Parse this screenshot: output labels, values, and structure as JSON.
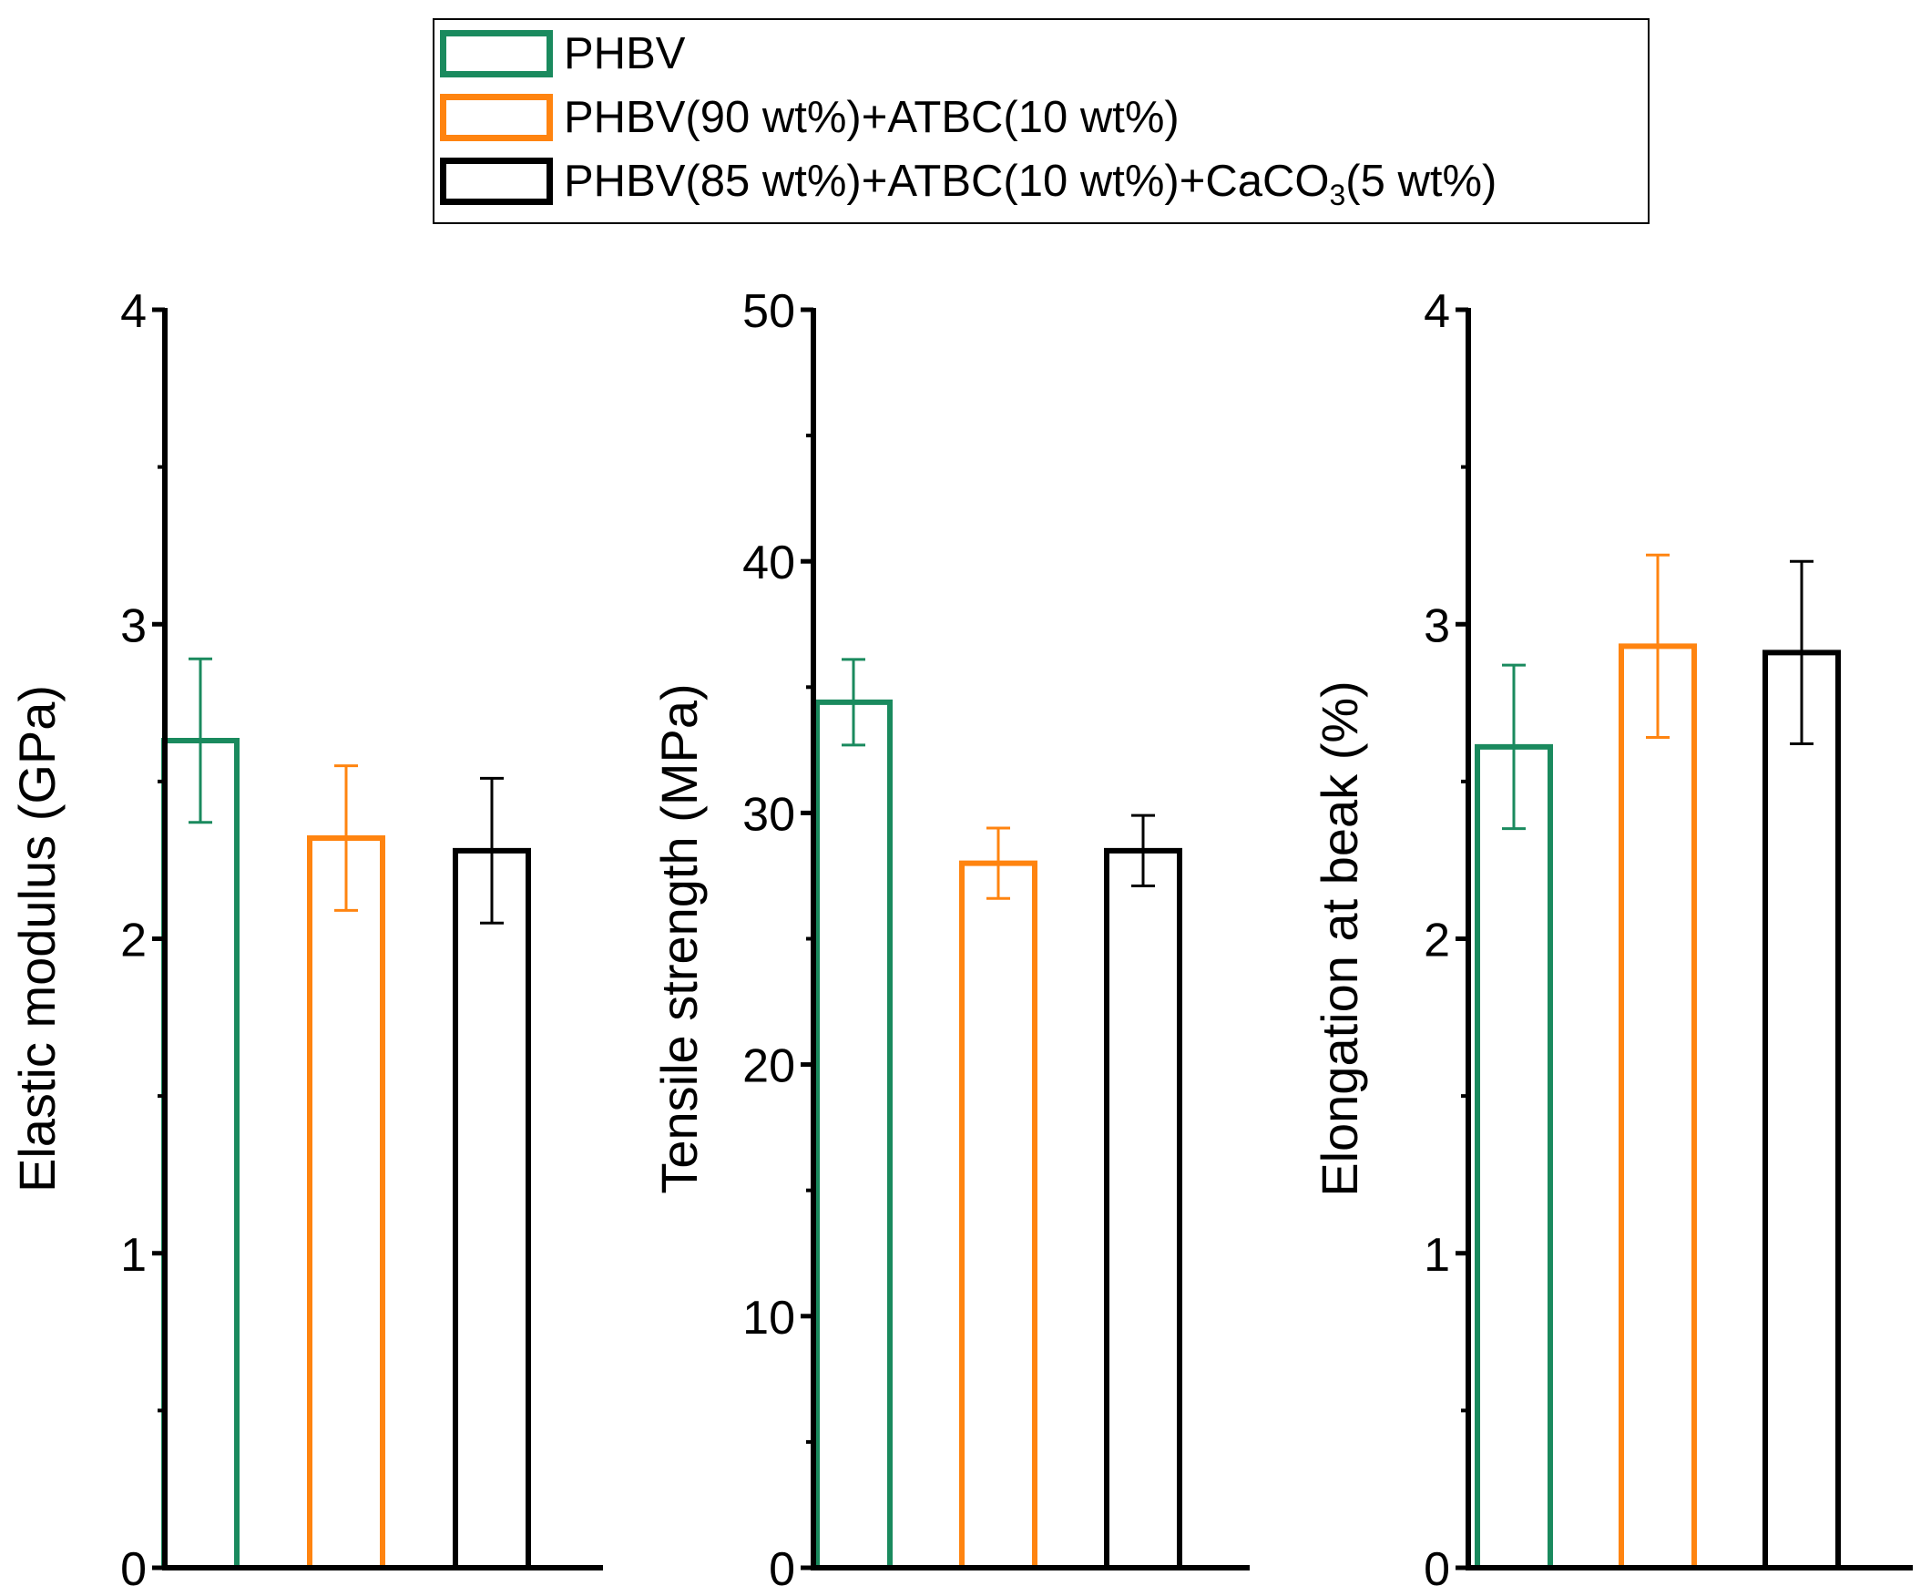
{
  "legend": {
    "items": [
      {
        "label": "PHBV",
        "color": "#1a8a5e"
      },
      {
        "label": "PHBV(90 wt%)+ATBC(10 wt%)",
        "color": "#ff8410"
      },
      {
        "label_main": "PHBV(85 wt%)+ATBC(10 wt%)+CaCO",
        "label_sub": "3",
        "label_tail": "(5 wt%)",
        "color": "#000000"
      }
    ]
  },
  "chart_data": [
    {
      "type": "bar",
      "ylabel": "Elastic modulus (GPa)",
      "ylim": [
        0,
        4
      ],
      "yticks": [
        "0",
        "1",
        "2",
        "3",
        "4"
      ],
      "series": [
        {
          "name": "PHBV",
          "value": 2.63,
          "error": 0.26
        },
        {
          "name": "PHBV(90 wt%)+ATBC(10 wt%)",
          "value": 2.32,
          "error": 0.23
        },
        {
          "name": "PHBV(85 wt%)+ATBC(10 wt%)+CaCO3(5 wt%)",
          "value": 2.28,
          "error": 0.23
        }
      ]
    },
    {
      "type": "bar",
      "ylabel": "Tensile strength (MPa)",
      "ylim": [
        0,
        50
      ],
      "yticks": [
        "0",
        "10",
        "20",
        "30",
        "40",
        "50"
      ],
      "series": [
        {
          "name": "PHBV",
          "value": 34.4,
          "error": 1.7
        },
        {
          "name": "PHBV(90 wt%)+ATBC(10 wt%)",
          "value": 28.0,
          "error": 1.4
        },
        {
          "name": "PHBV(85 wt%)+ATBC(10 wt%)+CaCO3(5 wt%)",
          "value": 28.5,
          "error": 1.4
        }
      ]
    },
    {
      "type": "bar",
      "ylabel": "Elongation at beak (%)",
      "ylim": [
        0,
        4
      ],
      "yticks": [
        "0",
        "1",
        "2",
        "3",
        "4"
      ],
      "series": [
        {
          "name": "PHBV",
          "value": 2.61,
          "error": 0.26
        },
        {
          "name": "PHBV(90 wt%)+ATBC(10 wt%)",
          "value": 2.93,
          "error": 0.29
        },
        {
          "name": "PHBV(85 wt%)+ATBC(10 wt%)+CaCO3(5 wt%)",
          "value": 2.91,
          "error": 0.29
        }
      ]
    }
  ]
}
